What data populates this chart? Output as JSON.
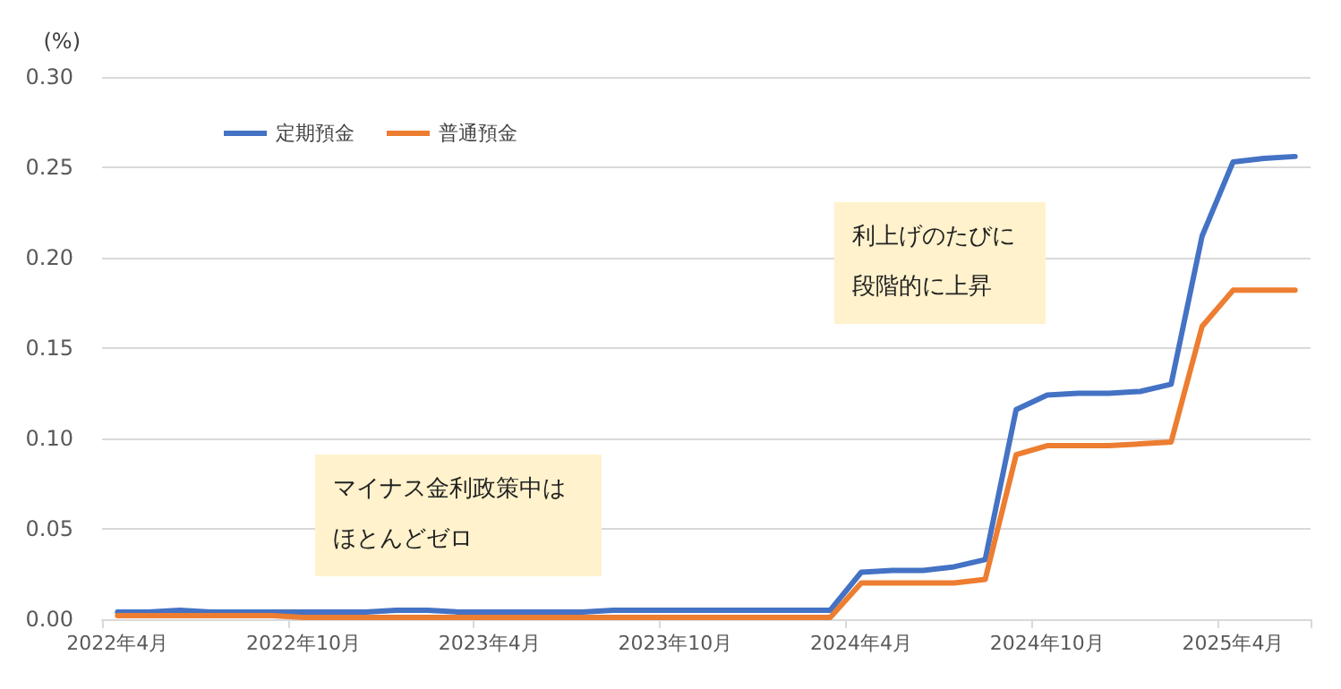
{
  "chart_data": {
    "type": "line",
    "ylabel": "(%)",
    "categories": [
      "2022年4月",
      null,
      null,
      null,
      null,
      null,
      "2022年10月",
      null,
      null,
      null,
      null,
      null,
      "2023年4月",
      null,
      null,
      null,
      null,
      null,
      "2023年10月",
      null,
      null,
      null,
      null,
      null,
      "2024年4月",
      null,
      null,
      null,
      null,
      null,
      "2024年10月",
      null,
      null,
      null,
      null,
      null,
      "2025年4月",
      null,
      null
    ],
    "series": [
      {
        "name": "定期預金",
        "color": "#4472c4",
        "values": [
          0.004,
          0.004,
          0.005,
          0.004,
          0.004,
          0.004,
          0.004,
          0.004,
          0.004,
          0.005,
          0.005,
          0.004,
          0.004,
          0.004,
          0.004,
          0.004,
          0.005,
          0.005,
          0.005,
          0.005,
          0.005,
          0.005,
          0.005,
          0.005,
          0.026,
          0.027,
          0.027,
          0.029,
          0.033,
          0.116,
          0.124,
          0.125,
          0.125,
          0.126,
          0.13,
          0.212,
          0.253,
          0.255,
          0.256
        ]
      },
      {
        "name": "普通預金",
        "color": "#ed7d31",
        "values": [
          0.002,
          0.002,
          0.002,
          0.002,
          0.002,
          0.002,
          0.001,
          0.001,
          0.001,
          0.001,
          0.001,
          0.001,
          0.001,
          0.001,
          0.001,
          0.001,
          0.001,
          0.001,
          0.001,
          0.001,
          0.001,
          0.001,
          0.001,
          0.001,
          0.02,
          0.02,
          0.02,
          0.02,
          0.022,
          0.091,
          0.096,
          0.096,
          0.096,
          0.097,
          0.098,
          0.162,
          0.182,
          0.182,
          0.182
        ]
      }
    ],
    "ylim": [
      0,
      0.3
    ],
    "yticks": [
      {
        "value": 0,
        "label": "0.00"
      },
      0.05,
      {
        "value": 0.1,
        "label": "0.10"
      },
      0.15,
      {
        "value": 0.2,
        "label": "0.20"
      },
      0.25,
      {
        "value": 0.3,
        "label": "0.30"
      }
    ],
    "grid": "y",
    "legend": "top left",
    "marker": "none",
    "line_style": "solid",
    "annotations": [
      "マイナス金利政策中はほとんどゼロ",
      "利上げのたびに段階的に上昇"
    ]
  }
}
